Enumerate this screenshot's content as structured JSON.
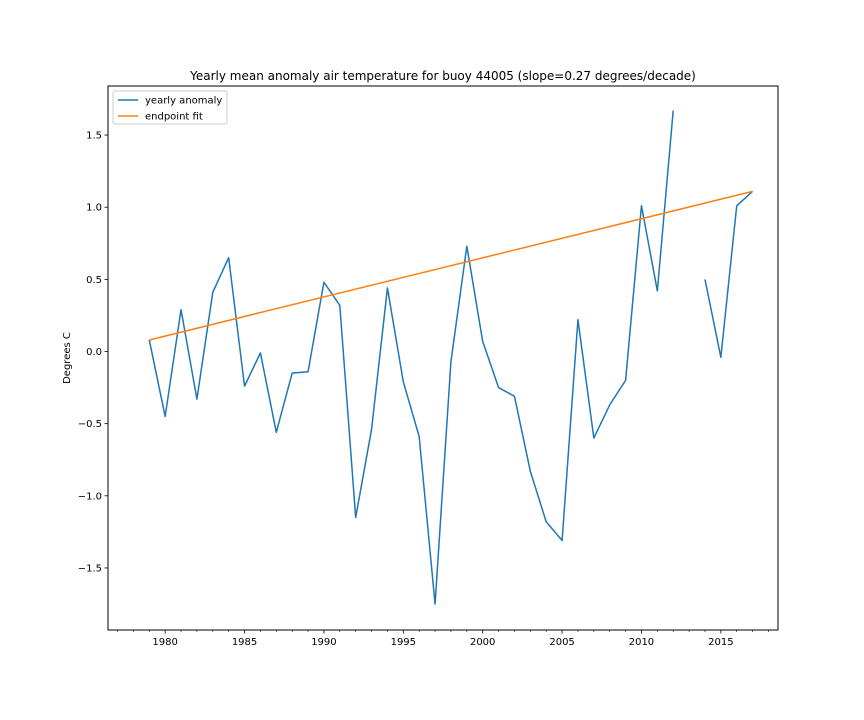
{
  "chart_data": {
    "type": "line",
    "title": "Yearly mean anomaly air temperature for buoy 44005 (slope=0.27 degrees/decade)",
    "xlabel": "",
    "ylabel": "Degrees C",
    "xlim": [
      1976.4,
      2018.6
    ],
    "ylim": [
      -1.93,
      1.84
    ],
    "x_ticks": [
      1980,
      1985,
      1990,
      1995,
      2000,
      2005,
      2010,
      2015
    ],
    "x_minor_ticks": [
      1977,
      1978,
      1979,
      1981,
      1982,
      1983,
      1984,
      1986,
      1987,
      1988,
      1989,
      1991,
      1992,
      1993,
      1994,
      1996,
      1997,
      1998,
      1999,
      2001,
      2002,
      2003,
      2004,
      2006,
      2007,
      2008,
      2009,
      2011,
      2012,
      2013,
      2014,
      2016,
      2017,
      2018
    ],
    "y_ticks": [
      -1.5,
      -1.0,
      -0.5,
      0.0,
      0.5,
      1.0,
      1.5
    ],
    "y_tick_labels": [
      "−1.5",
      "−1.0",
      "−0.5",
      "0.0",
      "0.5",
      "1.0",
      "1.5"
    ],
    "grid": false,
    "legend_position": "top-left",
    "series": [
      {
        "name": "yearly anomaly",
        "color": "#1f77b4",
        "x": [
          1979,
          1980,
          1981,
          1982,
          1983,
          1984,
          1985,
          1986,
          1987,
          1988,
          1989,
          1990,
          1991,
          1992,
          1993,
          1994,
          1995,
          1996,
          1997,
          1998,
          1999,
          2000,
          2001,
          2002,
          2003,
          2004,
          2005,
          2006,
          2007,
          2008,
          2009,
          2010,
          2011,
          2012,
          2013,
          2014,
          2015,
          2016,
          2017
        ],
        "y": [
          0.08,
          -0.45,
          0.29,
          -0.33,
          0.41,
          0.65,
          -0.24,
          -0.01,
          -0.56,
          -0.15,
          -0.14,
          0.48,
          0.32,
          -1.15,
          -0.54,
          0.44,
          -0.21,
          -0.59,
          -1.75,
          -0.07,
          0.73,
          0.07,
          -0.25,
          -0.31,
          -0.83,
          -1.18,
          -1.31,
          0.22,
          -0.6,
          -0.37,
          -0.2,
          1.01,
          0.42,
          1.67,
          null,
          0.5,
          -0.04,
          1.01,
          1.11
        ]
      },
      {
        "name": "endpoint fit",
        "color": "#ff7f0e",
        "x": [
          1979,
          2017
        ],
        "y": [
          0.08,
          1.11
        ]
      }
    ]
  }
}
